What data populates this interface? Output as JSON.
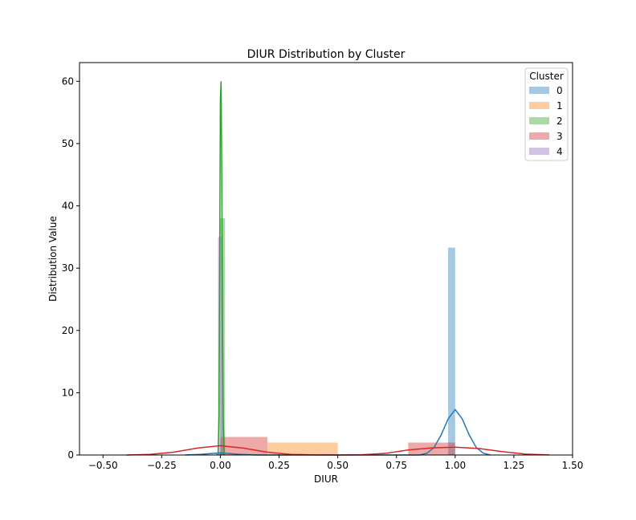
{
  "chart_data": {
    "type": "bar",
    "subtype": "histogram-with-kde",
    "title": "DIUR Distribution by Cluster",
    "xlabel": "DIUR",
    "ylabel": "Distribution Value",
    "xlim": [
      -0.6,
      1.5
    ],
    "ylim": [
      0,
      63
    ],
    "xticks": [
      -0.5,
      -0.25,
      0.0,
      0.25,
      0.5,
      0.75,
      1.0,
      1.25,
      1.5
    ],
    "xtick_labels": [
      "−0.50",
      "−0.25",
      "0.00",
      "0.25",
      "0.50",
      "0.75",
      "1.00",
      "1.25",
      "1.50"
    ],
    "yticks": [
      0,
      10,
      20,
      30,
      40,
      50,
      60
    ],
    "ytick_labels": [
      "0",
      "10",
      "20",
      "30",
      "40",
      "50",
      "60"
    ],
    "grid": false,
    "legend": {
      "title": "Cluster",
      "placement": "top-right"
    },
    "series": [
      {
        "name": "0",
        "color": "#1f77b4",
        "bins": [
          {
            "x0": -0.02,
            "x1": 0.02,
            "value": 0.3
          },
          {
            "x0": 0.97,
            "x1": 1.0,
            "value": 33.3
          }
        ],
        "kde": [
          [
            -0.15,
            0
          ],
          [
            -0.08,
            0.12
          ],
          [
            0.0,
            0.35
          ],
          [
            0.08,
            0.12
          ],
          [
            0.15,
            0
          ],
          [
            0.85,
            0
          ],
          [
            0.88,
            0.3
          ],
          [
            0.91,
            1.2
          ],
          [
            0.94,
            3.2
          ],
          [
            0.97,
            5.8
          ],
          [
            1.0,
            7.3
          ],
          [
            1.03,
            5.8
          ],
          [
            1.06,
            3.2
          ],
          [
            1.09,
            1.2
          ],
          [
            1.12,
            0.3
          ],
          [
            1.15,
            0
          ]
        ]
      },
      {
        "name": "1",
        "color": "#ff7f0e",
        "bins": [
          {
            "x0": 0.2,
            "x1": 0.5,
            "value": 2.0
          }
        ],
        "kde": []
      },
      {
        "name": "2",
        "color": "#2ca02c",
        "bins": [
          {
            "x0": 0.0,
            "x1": 0.02,
            "value": 38.0
          }
        ],
        "kde": [
          [
            -0.01,
            0
          ],
          [
            -0.006,
            6
          ],
          [
            -0.003,
            30
          ],
          [
            0.0,
            57
          ],
          [
            0.003,
            60
          ],
          [
            0.006,
            45
          ],
          [
            0.009,
            22
          ],
          [
            0.012,
            6
          ],
          [
            0.016,
            0
          ]
        ]
      },
      {
        "name": "3",
        "color": "#d62728",
        "bins": [
          {
            "x0": 0.0,
            "x1": 0.2,
            "value": 2.9
          },
          {
            "x0": 0.8,
            "x1": 1.0,
            "value": 2.0
          }
        ],
        "kde": [
          [
            -0.4,
            0
          ],
          [
            -0.3,
            0.1
          ],
          [
            -0.2,
            0.45
          ],
          [
            -0.1,
            1.1
          ],
          [
            0.0,
            1.5
          ],
          [
            0.1,
            1.1
          ],
          [
            0.2,
            0.45
          ],
          [
            0.3,
            0.1
          ],
          [
            0.4,
            0.02
          ],
          [
            0.5,
            0
          ],
          [
            0.6,
            0.03
          ],
          [
            0.7,
            0.25
          ],
          [
            0.8,
            0.8
          ],
          [
            0.9,
            1.15
          ],
          [
            1.0,
            1.25
          ],
          [
            1.1,
            1.05
          ],
          [
            1.2,
            0.55
          ],
          [
            1.3,
            0.15
          ],
          [
            1.4,
            0.02
          ]
        ]
      },
      {
        "name": "4",
        "color": "#9467bd",
        "bins": [
          {
            "x0": -0.01,
            "x1": 0.01,
            "value": 35.0
          }
        ],
        "kde": []
      }
    ]
  }
}
